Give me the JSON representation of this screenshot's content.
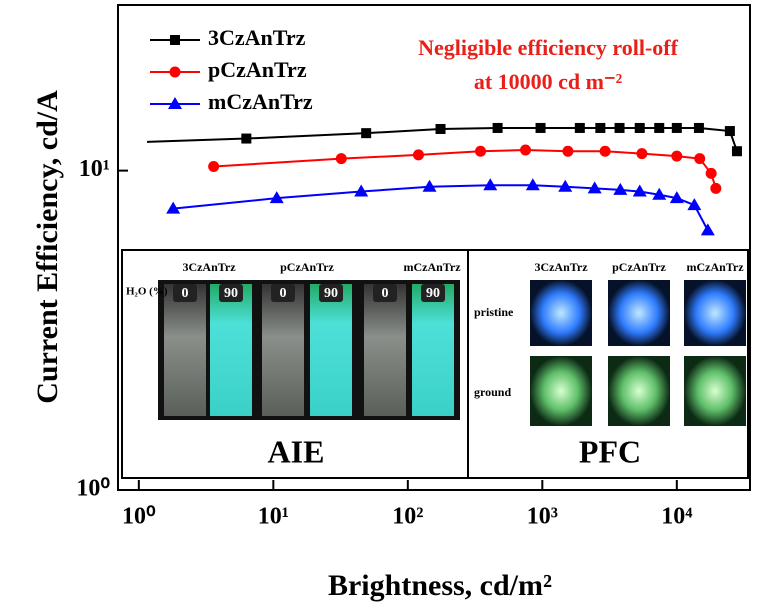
{
  "chart_data": {
    "type": "line",
    "xlabel": "Brightness, cd/m²",
    "ylabel": "Current Efficiency, cd/A",
    "annotation": [
      "Negligible efficiency roll-off",
      "at 10000 cd m⁻²"
    ],
    "log_x": true,
    "log_y": true,
    "xlim": [
      0.7,
      35000
    ],
    "ylim": [
      1,
      33
    ],
    "xticks": [
      {
        "value": 1,
        "label": "10⁰"
      },
      {
        "value": 10,
        "label": "10¹"
      },
      {
        "value": 100,
        "label": "10²"
      },
      {
        "value": 1000,
        "label": "10³"
      },
      {
        "value": 10000,
        "label": "10⁴"
      }
    ],
    "yticks": [
      {
        "value": 1,
        "label": "10⁰"
      },
      {
        "value": 10,
        "label": "10¹"
      }
    ],
    "series": [
      {
        "name": "3CzAnTrz",
        "color": "#000000",
        "marker": "square",
        "x": [
          1.15,
          6.3,
          49,
          175,
          465,
          970,
          1900,
          2700,
          3750,
          5300,
          7400,
          10000,
          14600,
          24800,
          28000
        ],
        "values": [
          12.3,
          12.6,
          13.1,
          13.5,
          13.6,
          13.6,
          13.6,
          13.6,
          13.6,
          13.6,
          13.6,
          13.6,
          13.6,
          13.3,
          11.5
        ]
      },
      {
        "name": "pCzAnTrz",
        "color": "#ff0000",
        "marker": "circle",
        "x": [
          3.6,
          32,
          120,
          347,
          750,
          1550,
          2930,
          5500,
          10000,
          14800,
          18000,
          19500
        ],
        "values": [
          10.3,
          10.9,
          11.2,
          11.5,
          11.6,
          11.5,
          11.5,
          11.3,
          11.1,
          10.9,
          9.8,
          8.8
        ]
      },
      {
        "name": "mCzAnTrz",
        "color": "#0000ff",
        "marker": "triangle",
        "x": [
          1.8,
          10.6,
          45,
          145,
          410,
          850,
          1480,
          2450,
          3800,
          5300,
          7400,
          10000,
          13500,
          17000
        ],
        "values": [
          7.6,
          8.2,
          8.6,
          8.9,
          9.0,
          9.0,
          8.9,
          8.8,
          8.7,
          8.6,
          8.4,
          8.2,
          7.8,
          6.5
        ]
      }
    ]
  },
  "inset": {
    "aie": {
      "compounds": [
        "3CzAnTrz",
        "pCzAnTrz",
        "mCzAnTrz"
      ],
      "water_label": "H₂O (%)",
      "fractions": [
        "0",
        "90"
      ],
      "title": "AIE"
    },
    "pfc": {
      "compounds": [
        "3CzAnTrz",
        "pCzAnTrz",
        "mCzAnTrz"
      ],
      "rows": [
        "pristine",
        "ground"
      ],
      "title": "PFC"
    }
  }
}
